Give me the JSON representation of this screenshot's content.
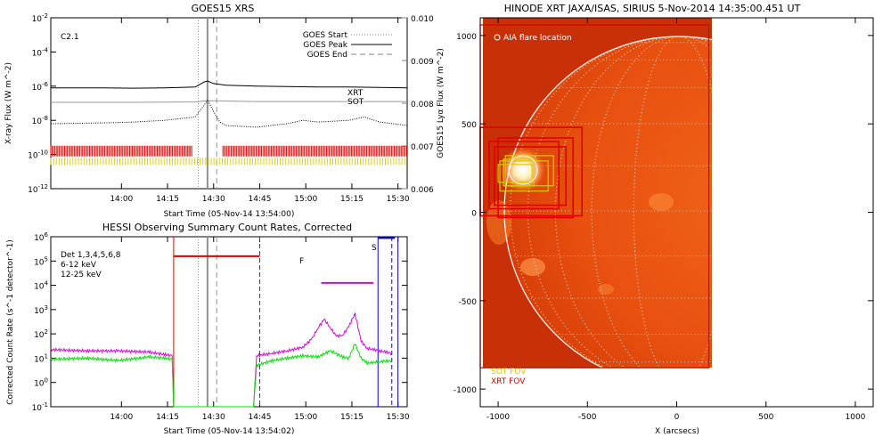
{
  "colors": {
    "goes_long": "#000000",
    "goes_short": "#000000",
    "lya": "#999999",
    "xrt_bar": "#e00000",
    "sot_bar": "#d8c800",
    "low_energy": "#e000e0",
    "mid_energy": "#00e000",
    "attenuator": "#e00000",
    "saa": "#0000e0",
    "flare_flag": "#e000e0",
    "vline": "#909090",
    "sun_dark": "#c02800",
    "sun_mid": "#e85010",
    "sun_bright": "#fff0d0"
  },
  "chart_data": [
    {
      "type": "line",
      "title": "GOES15 XRS",
      "xlabel": "Start Time (05-Nov-14 13:54:00)",
      "ylabel": "X-ray Flux (W m^-2)",
      "ylabel_right": "GOES15 Lyα Flux (W m^-2)",
      "xlim_minutes": [
        -17,
        99
      ],
      "xticks": [
        {
          "t": 6,
          "label": "14:00"
        },
        {
          "t": 21,
          "label": "14:15"
        },
        {
          "t": 36,
          "label": "14:30"
        },
        {
          "t": 51,
          "label": "14:45"
        },
        {
          "t": 66,
          "label": "15:00"
        },
        {
          "t": 81,
          "label": "15:15"
        },
        {
          "t": 96,
          "label": "15:30"
        }
      ],
      "yticks_left": [
        {
          "exp": -2,
          "label": "10^-2"
        },
        {
          "exp": -4,
          "label": "10^-4"
        },
        {
          "exp": -6,
          "label": "10^-6"
        },
        {
          "exp": -8,
          "label": "10^-8"
        },
        {
          "exp": -10,
          "label": "10^-10"
        },
        {
          "exp": -12,
          "label": "10^-12"
        }
      ],
      "ylim_exp": [
        -12,
        -2
      ],
      "yticks_right": [
        "0.010",
        "0.009",
        "0.008",
        "0.007",
        "0.006"
      ],
      "ylim_right": [
        0.006,
        0.01
      ],
      "flare_class": "C2.1",
      "legend": [
        {
          "label": "GOES Start",
          "style": "dotted"
        },
        {
          "label": "GOES Peak",
          "style": "solid"
        },
        {
          "label": "GOES End",
          "style": "dashed"
        }
      ],
      "markers": {
        "start": 31,
        "peak": 34,
        "end": 37
      },
      "series": [
        {
          "name": "",
          "role": "goes_long",
          "x": [
            -17,
            0,
            10,
            20,
            30,
            33,
            34,
            36,
            40,
            50,
            60,
            70,
            80,
            90,
            99
          ],
          "logy": [
            -6.1,
            -6.1,
            -6.12,
            -6.1,
            -6.05,
            -5.75,
            -5.7,
            -5.85,
            -5.95,
            -6.0,
            -6.02,
            -6.05,
            -6.05,
            -6.08,
            -6.1
          ]
        },
        {
          "name": "",
          "role": "lya",
          "x": [
            -17,
            10,
            30,
            34,
            50,
            70,
            99
          ],
          "logy": [
            -6.95,
            -6.95,
            -6.92,
            -6.85,
            -6.9,
            -6.9,
            -6.9
          ]
        },
        {
          "name": "",
          "role": "goes_short",
          "x": [
            -17,
            0,
            10,
            20,
            30,
            33,
            34,
            36,
            38,
            40,
            50,
            60,
            65,
            70,
            80,
            85,
            90,
            99
          ],
          "logy": [
            -8.2,
            -8.15,
            -8.1,
            -8.0,
            -7.8,
            -7.1,
            -6.8,
            -7.5,
            -8.1,
            -8.3,
            -8.4,
            -8.2,
            -8.0,
            -8.1,
            -8.0,
            -7.8,
            -8.1,
            -8.3
          ]
        }
      ],
      "xrt_label": "XRT",
      "sot_label": "SOT",
      "xrt_obs": [
        [
          -17,
          29
        ],
        [
          39,
          99
        ]
      ],
      "sot_obs": [
        [
          -17,
          99
        ]
      ]
    },
    {
      "type": "line",
      "title": "HESSI Observing Summary Count Rates, Corrected",
      "xlabel": "Start Time (05-Nov-14 13:54:02)",
      "ylabel": "Corrected Count Rate (s^-1 detector^-1)",
      "xlim_minutes": [
        -17,
        99
      ],
      "xticks": [
        {
          "t": 6,
          "label": "14:00"
        },
        {
          "t": 21,
          "label": "14:15"
        },
        {
          "t": 36,
          "label": "14:30"
        },
        {
          "t": 51,
          "label": "14:45"
        },
        {
          "t": 66,
          "label": "15:00"
        },
        {
          "t": 81,
          "label": "15:15"
        },
        {
          "t": 96,
          "label": "15:30"
        }
      ],
      "yticks": [
        {
          "exp": 6,
          "label": "10^6"
        },
        {
          "exp": 5,
          "label": "10^5"
        },
        {
          "exp": 4,
          "label": "10^4"
        },
        {
          "exp": 3,
          "label": "10^3"
        },
        {
          "exp": 2,
          "label": "10^2"
        },
        {
          "exp": 1,
          "label": "10^1"
        },
        {
          "exp": 0,
          "label": "10^0"
        },
        {
          "exp": -1,
          "label": "10^-1"
        }
      ],
      "ylim_exp": [
        -1,
        6
      ],
      "legend": [
        {
          "label": "Det 1,3,4,5,6,8",
          "color_key": "goes_long"
        },
        {
          "label": "6-12 keV",
          "color_key": "low_energy"
        },
        {
          "label": "12-25 keV",
          "color_key": "mid_energy"
        }
      ],
      "flags": {
        "F": "F",
        "S": "S"
      },
      "attenuator_state": {
        "x": [
          23,
          51
        ],
        "logy": 5.2
      },
      "flare_bar": {
        "x": [
          71,
          88
        ],
        "logy": 4.1
      },
      "saa_bar": {
        "x": [
          89.5,
          95
        ],
        "logy": 5.95
      },
      "red_lines": [
        {
          "t": 23,
          "style": "solid"
        },
        {
          "t": 51,
          "style": "dashed"
        }
      ],
      "blue_lines": [
        {
          "t": 89.5,
          "style": "solid"
        },
        {
          "t": 94,
          "style": "dashed"
        },
        {
          "t": 96,
          "style": "solid"
        }
      ],
      "series": [
        {
          "name": "6-12 keV",
          "role": "low_energy",
          "x": [
            -17,
            -5,
            5,
            15,
            20,
            22.5,
            23,
            31,
            49,
            50,
            55,
            60,
            65,
            68,
            70,
            72,
            74,
            76,
            78,
            80,
            82,
            84,
            86,
            88,
            90,
            92,
            94
          ],
          "logy": [
            1.35,
            1.3,
            1.3,
            1.25,
            1.15,
            1.1,
            -1,
            -1,
            -1,
            1.1,
            1.2,
            1.3,
            1.45,
            1.8,
            2.25,
            2.6,
            2.25,
            1.9,
            1.95,
            2.3,
            2.85,
            1.7,
            1.4,
            1.35,
            1.3,
            1.25,
            1.2
          ]
        },
        {
          "name": "12-25 keV",
          "role": "mid_energy",
          "x": [
            -17,
            -5,
            5,
            15,
            20,
            22.5,
            23,
            49,
            50,
            55,
            60,
            65,
            70,
            74,
            78,
            80,
            82,
            84,
            86,
            90,
            94
          ],
          "logy": [
            0.95,
            1.0,
            0.9,
            1.05,
            1.0,
            0.95,
            -1,
            -1,
            0.7,
            0.9,
            1.0,
            1.1,
            1.05,
            1.3,
            1.05,
            1.0,
            1.6,
            1.0,
            0.8,
            0.85,
            0.9
          ]
        }
      ]
    },
    {
      "type": "heatmap",
      "title": "HINODE XRT JAXA/ISAS, SIRIUS  5-Nov-2014 14:35:00.451 UT",
      "xlabel": "X (arcsecs)",
      "ylabel": "",
      "xlim": [
        -1100,
        1100
      ],
      "ylim": [
        -1100,
        1100
      ],
      "xticks": [
        "-1000",
        "-500",
        "0",
        "500",
        "1000"
      ],
      "yticks": [
        "1000",
        "500",
        "0",
        "-500",
        "-1000"
      ],
      "image_extent": {
        "x": [
          -1100,
          180
        ],
        "y": [
          -880,
          1060
        ]
      },
      "limb_radius": 975,
      "flare_location": {
        "x": -860,
        "y": 230
      },
      "legend": [
        {
          "label": "AIA flare location",
          "color_key": "sun_bright"
        },
        {
          "label": "SOT FOV",
          "color_key": "sot_bar"
        },
        {
          "label": "XRT FOV",
          "color_key": "xrt_bar"
        }
      ],
      "xrt_fov": [
        {
          "x": [
            -1100,
            -530
          ],
          "y": [
            -20,
            480
          ]
        },
        {
          "x": [
            -1050,
            -660
          ],
          "y": [
            20,
            400
          ]
        },
        {
          "x": [
            -1020,
            -620
          ],
          "y": [
            40,
            370
          ]
        },
        {
          "x": [
            -1000,
            -580
          ],
          "y": [
            -30,
            420
          ]
        }
      ],
      "sot_fov": [
        {
          "x": [
            -990,
            -720
          ],
          "y": [
            120,
            290
          ]
        },
        {
          "x": [
            -960,
            -690
          ],
          "y": [
            150,
            320
          ]
        },
        {
          "x": [
            -1000,
            -810
          ],
          "y": [
            170,
            270
          ]
        },
        {
          "x": [
            -970,
            -800
          ],
          "y": [
            150,
            300
          ]
        }
      ]
    }
  ]
}
